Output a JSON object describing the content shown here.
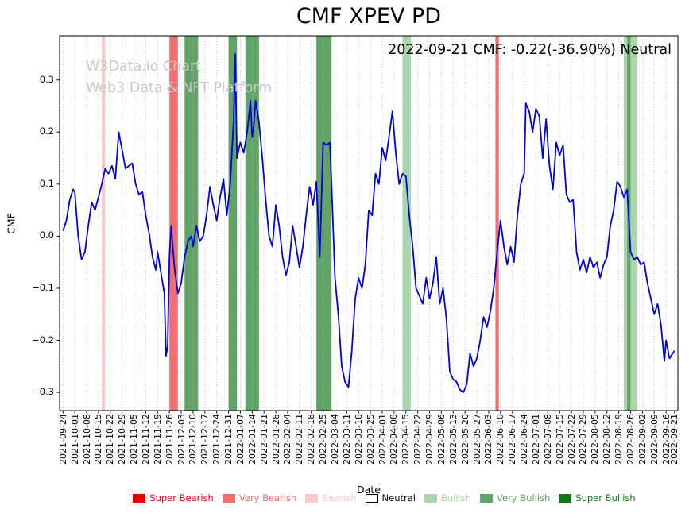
{
  "watermark": {
    "line1": "W3Data.io Chart",
    "line2": "Web3 Data & NFT Platform"
  },
  "level_colors": {
    "Super Bearish": "#e80000",
    "Very Bearish": "#f26d6d",
    "Bearish": "#f8c8cd",
    "Neutral": "#ffffff",
    "Bullish": "#aad6ac",
    "Very Bullish": "#61a365",
    "Super Bullish": "#0e7c10"
  },
  "chart_data": {
    "type": "line",
    "title": "CMF XPEV PD",
    "annotation": "2022-09-21 CMF: -0.22(-36.90%) Neutral",
    "xlabel": "Date",
    "ylabel": "CMF",
    "x_range": [
      "2021-09-24",
      "2022-09-21"
    ],
    "ylim": [
      -0.335,
      0.385
    ],
    "grid": true,
    "grid_color": "#b8b8b8",
    "line_color": "#0000d8",
    "y_ticks": [
      -0.3,
      -0.2,
      -0.1,
      0.0,
      0.1,
      0.2,
      0.3
    ],
    "x_ticks": [
      "2021-09-24",
      "2021-10-01",
      "2021-10-08",
      "2021-10-15",
      "2021-10-22",
      "2021-10-29",
      "2021-11-05",
      "2021-11-12",
      "2021-11-19",
      "2021-11-26",
      "2021-12-03",
      "2021-12-10",
      "2021-12-17",
      "2021-12-24",
      "2021-12-31",
      "2022-01-07",
      "2022-01-14",
      "2022-01-21",
      "2022-01-28",
      "2022-02-04",
      "2022-02-11",
      "2022-02-18",
      "2022-02-25",
      "2022-03-04",
      "2022-03-11",
      "2022-03-18",
      "2022-03-25",
      "2022-04-01",
      "2022-04-08",
      "2022-04-15",
      "2022-04-22",
      "2022-04-29",
      "2022-05-06",
      "2022-05-13",
      "2022-05-20",
      "2022-05-27",
      "2022-06-03",
      "2022-06-10",
      "2022-06-17",
      "2022-06-24",
      "2022-07-01",
      "2022-07-08",
      "2022-07-15",
      "2022-07-22",
      "2022-07-29",
      "2022-08-05",
      "2022-08-12",
      "2022-08-19",
      "2022-08-26",
      "2022-09-02",
      "2022-09-09",
      "2022-09-16",
      "2022-09-21"
    ],
    "bands": [
      {
        "from": "2021-10-17",
        "to": "2021-10-19",
        "level": "Bearish"
      },
      {
        "from": "2021-11-26",
        "to": "2021-12-01",
        "level": "Very Bearish"
      },
      {
        "from": "2021-12-05",
        "to": "2021-12-13",
        "level": "Very Bullish"
      },
      {
        "from": "2021-12-31",
        "to": "2022-01-05",
        "level": "Very Bullish"
      },
      {
        "from": "2022-01-10",
        "to": "2022-01-18",
        "level": "Very Bullish"
      },
      {
        "from": "2022-02-21",
        "to": "2022-03-02",
        "level": "Very Bullish"
      },
      {
        "from": "2022-04-13",
        "to": "2022-04-18",
        "level": "Bullish"
      },
      {
        "from": "2022-06-07",
        "to": "2022-06-09",
        "level": "Very Bearish"
      },
      {
        "from": "2022-08-22",
        "to": "2022-08-30",
        "level": "Bullish"
      },
      {
        "from": "2022-08-24",
        "to": "2022-08-26",
        "level": "Very Bullish"
      }
    ],
    "legend": {
      "position": "bottom center",
      "items": [
        "Super Bearish",
        "Very Bearish",
        "Bearish",
        "Neutral",
        "Bullish",
        "Very Bullish",
        "Super Bullish"
      ]
    },
    "series": [
      {
        "name": "CMF",
        "points": [
          [
            "2021-09-24",
            0.01
          ],
          [
            "2021-09-26",
            0.03
          ],
          [
            "2021-09-28",
            0.07
          ],
          [
            "2021-09-30",
            0.09
          ],
          [
            "2021-10-01",
            0.085
          ],
          [
            "2021-10-03",
            0.0
          ],
          [
            "2021-10-05",
            -0.045
          ],
          [
            "2021-10-07",
            -0.03
          ],
          [
            "2021-10-09",
            0.02
          ],
          [
            "2021-10-11",
            0.065
          ],
          [
            "2021-10-13",
            0.05
          ],
          [
            "2021-10-15",
            0.075
          ],
          [
            "2021-10-17",
            0.1
          ],
          [
            "2021-10-19",
            0.13
          ],
          [
            "2021-10-21",
            0.12
          ],
          [
            "2021-10-23",
            0.135
          ],
          [
            "2021-10-25",
            0.11
          ],
          [
            "2021-10-26",
            0.155
          ],
          [
            "2021-10-27",
            0.2
          ],
          [
            "2021-10-29",
            0.165
          ],
          [
            "2021-10-31",
            0.13
          ],
          [
            "2021-11-02",
            0.135
          ],
          [
            "2021-11-04",
            0.14
          ],
          [
            "2021-11-06",
            0.1
          ],
          [
            "2021-11-08",
            0.08
          ],
          [
            "2021-11-10",
            0.085
          ],
          [
            "2021-11-12",
            0.04
          ],
          [
            "2021-11-14",
            0.005
          ],
          [
            "2021-11-16",
            -0.04
          ],
          [
            "2021-11-18",
            -0.065
          ],
          [
            "2021-11-19",
            -0.03
          ],
          [
            "2021-11-21",
            -0.07
          ],
          [
            "2021-11-23",
            -0.11
          ],
          [
            "2021-11-24",
            -0.23
          ],
          [
            "2021-11-25",
            -0.21
          ],
          [
            "2021-11-26",
            -0.04
          ],
          [
            "2021-11-27",
            0.02
          ],
          [
            "2021-11-28",
            -0.02
          ],
          [
            "2021-11-29",
            -0.06
          ],
          [
            "2021-12-01",
            -0.11
          ],
          [
            "2021-12-03",
            -0.09
          ],
          [
            "2021-12-05",
            -0.04
          ],
          [
            "2021-12-07",
            -0.01
          ],
          [
            "2021-12-09",
            0.0
          ],
          [
            "2021-12-10",
            -0.02
          ],
          [
            "2021-12-12",
            0.02
          ],
          [
            "2021-12-14",
            -0.01
          ],
          [
            "2021-12-16",
            0.0
          ],
          [
            "2021-12-18",
            0.04
          ],
          [
            "2021-12-20",
            0.095
          ],
          [
            "2021-12-22",
            0.06
          ],
          [
            "2021-12-24",
            0.03
          ],
          [
            "2021-12-26",
            0.075
          ],
          [
            "2021-12-28",
            0.11
          ],
          [
            "2021-12-30",
            0.04
          ],
          [
            "2022-01-01",
            0.1
          ],
          [
            "2022-01-03",
            0.22
          ],
          [
            "2022-01-04",
            0.35
          ],
          [
            "2022-01-05",
            0.15
          ],
          [
            "2022-01-07",
            0.18
          ],
          [
            "2022-01-09",
            0.16
          ],
          [
            "2022-01-11",
            0.2
          ],
          [
            "2022-01-13",
            0.26
          ],
          [
            "2022-01-14",
            0.19
          ],
          [
            "2022-01-15",
            0.215
          ],
          [
            "2022-01-16",
            0.26
          ],
          [
            "2022-01-18",
            0.22
          ],
          [
            "2022-01-20",
            0.15
          ],
          [
            "2022-01-22",
            0.07
          ],
          [
            "2022-01-24",
            0.0
          ],
          [
            "2022-01-26",
            -0.02
          ],
          [
            "2022-01-28",
            0.06
          ],
          [
            "2022-01-30",
            0.02
          ],
          [
            "2022-02-01",
            -0.04
          ],
          [
            "2022-02-03",
            -0.075
          ],
          [
            "2022-02-05",
            -0.05
          ],
          [
            "2022-02-07",
            0.02
          ],
          [
            "2022-02-09",
            -0.02
          ],
          [
            "2022-02-11",
            -0.06
          ],
          [
            "2022-02-13",
            -0.02
          ],
          [
            "2022-02-15",
            0.04
          ],
          [
            "2022-02-17",
            0.095
          ],
          [
            "2022-02-19",
            0.06
          ],
          [
            "2022-02-21",
            0.105
          ],
          [
            "2022-02-23",
            -0.04
          ],
          [
            "2022-02-24",
            0.07
          ],
          [
            "2022-02-25",
            0.18
          ],
          [
            "2022-02-27",
            0.175
          ],
          [
            "2022-03-01",
            0.18
          ],
          [
            "2022-03-02",
            0.1
          ],
          [
            "2022-03-04",
            -0.08
          ],
          [
            "2022-03-06",
            -0.15
          ],
          [
            "2022-03-08",
            -0.25
          ],
          [
            "2022-03-10",
            -0.28
          ],
          [
            "2022-03-12",
            -0.29
          ],
          [
            "2022-03-14",
            -0.22
          ],
          [
            "2022-03-16",
            -0.12
          ],
          [
            "2022-03-18",
            -0.08
          ],
          [
            "2022-03-20",
            -0.1
          ],
          [
            "2022-03-22",
            -0.055
          ],
          [
            "2022-03-24",
            0.05
          ],
          [
            "2022-03-26",
            0.04
          ],
          [
            "2022-03-28",
            0.12
          ],
          [
            "2022-03-30",
            0.1
          ],
          [
            "2022-04-01",
            0.17
          ],
          [
            "2022-04-03",
            0.145
          ],
          [
            "2022-04-05",
            0.19
          ],
          [
            "2022-04-07",
            0.24
          ],
          [
            "2022-04-09",
            0.16
          ],
          [
            "2022-04-11",
            0.1
          ],
          [
            "2022-04-13",
            0.12
          ],
          [
            "2022-04-15",
            0.115
          ],
          [
            "2022-04-17",
            0.04
          ],
          [
            "2022-04-19",
            -0.02
          ],
          [
            "2022-04-21",
            -0.1
          ],
          [
            "2022-04-23",
            -0.115
          ],
          [
            "2022-04-25",
            -0.13
          ],
          [
            "2022-04-27",
            -0.08
          ],
          [
            "2022-04-29",
            -0.12
          ],
          [
            "2022-05-01",
            -0.09
          ],
          [
            "2022-05-03",
            -0.04
          ],
          [
            "2022-05-05",
            -0.13
          ],
          [
            "2022-05-07",
            -0.1
          ],
          [
            "2022-05-09",
            -0.16
          ],
          [
            "2022-05-11",
            -0.26
          ],
          [
            "2022-05-13",
            -0.275
          ],
          [
            "2022-05-15",
            -0.28
          ],
          [
            "2022-05-17",
            -0.295
          ],
          [
            "2022-05-19",
            -0.3
          ],
          [
            "2022-05-21",
            -0.285
          ],
          [
            "2022-05-23",
            -0.225
          ],
          [
            "2022-05-25",
            -0.25
          ],
          [
            "2022-05-27",
            -0.235
          ],
          [
            "2022-05-29",
            -0.2
          ],
          [
            "2022-05-31",
            -0.155
          ],
          [
            "2022-06-02",
            -0.175
          ],
          [
            "2022-06-04",
            -0.145
          ],
          [
            "2022-06-06",
            -0.1
          ],
          [
            "2022-06-08",
            -0.03
          ],
          [
            "2022-06-10",
            0.03
          ],
          [
            "2022-06-12",
            -0.02
          ],
          [
            "2022-06-14",
            -0.055
          ],
          [
            "2022-06-16",
            -0.02
          ],
          [
            "2022-06-18",
            -0.05
          ],
          [
            "2022-06-20",
            0.04
          ],
          [
            "2022-06-22",
            0.1
          ],
          [
            "2022-06-24",
            0.12
          ],
          [
            "2022-06-25",
            0.255
          ],
          [
            "2022-06-27",
            0.24
          ],
          [
            "2022-06-29",
            0.2
          ],
          [
            "2022-07-01",
            0.245
          ],
          [
            "2022-07-03",
            0.23
          ],
          [
            "2022-07-05",
            0.15
          ],
          [
            "2022-07-07",
            0.225
          ],
          [
            "2022-07-09",
            0.135
          ],
          [
            "2022-07-11",
            0.09
          ],
          [
            "2022-07-13",
            0.18
          ],
          [
            "2022-07-15",
            0.155
          ],
          [
            "2022-07-17",
            0.175
          ],
          [
            "2022-07-19",
            0.08
          ],
          [
            "2022-07-21",
            0.065
          ],
          [
            "2022-07-23",
            0.07
          ],
          [
            "2022-07-25",
            -0.03
          ],
          [
            "2022-07-27",
            -0.065
          ],
          [
            "2022-07-29",
            -0.045
          ],
          [
            "2022-07-31",
            -0.07
          ],
          [
            "2022-08-02",
            -0.04
          ],
          [
            "2022-08-04",
            -0.06
          ],
          [
            "2022-08-06",
            -0.05
          ],
          [
            "2022-08-08",
            -0.08
          ],
          [
            "2022-08-10",
            -0.055
          ],
          [
            "2022-08-12",
            -0.04
          ],
          [
            "2022-08-14",
            0.02
          ],
          [
            "2022-08-16",
            0.05
          ],
          [
            "2022-08-18",
            0.105
          ],
          [
            "2022-08-20",
            0.095
          ],
          [
            "2022-08-22",
            0.075
          ],
          [
            "2022-08-24",
            0.09
          ],
          [
            "2022-08-26",
            -0.03
          ],
          [
            "2022-08-28",
            -0.045
          ],
          [
            "2022-08-30",
            -0.04
          ],
          [
            "2022-09-01",
            -0.055
          ],
          [
            "2022-09-03",
            -0.05
          ],
          [
            "2022-09-05",
            -0.09
          ],
          [
            "2022-09-07",
            -0.12
          ],
          [
            "2022-09-09",
            -0.15
          ],
          [
            "2022-09-11",
            -0.13
          ],
          [
            "2022-09-13",
            -0.17
          ],
          [
            "2022-09-15",
            -0.24
          ],
          [
            "2022-09-16",
            -0.2
          ],
          [
            "2022-09-18",
            -0.235
          ],
          [
            "2022-09-21",
            -0.22
          ]
        ]
      }
    ]
  }
}
